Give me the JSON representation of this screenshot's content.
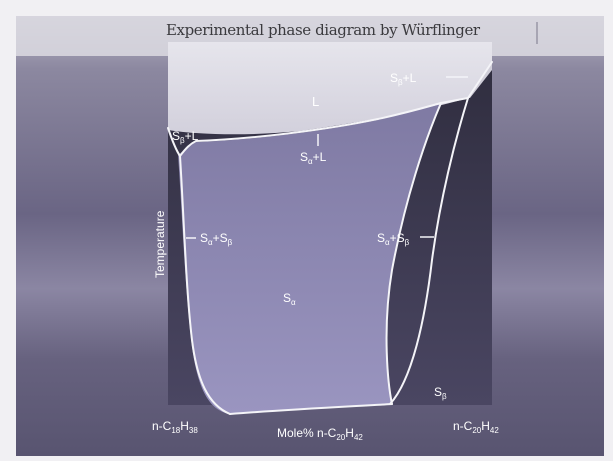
{
  "diagram": {
    "title": "Experimental phase diagram by Würflinger",
    "y_axis_label": "Temperature",
    "x_axis_label": {
      "text": "Mole% n-C",
      "sub1": "20",
      "mid": "H",
      "sub2": "42"
    },
    "left_component": {
      "c": "n-C",
      "c_sub": "18",
      "h": "H",
      "h_sub": "38"
    },
    "right_component": {
      "c": "n-C",
      "c_sub": "20",
      "h": "H",
      "h_sub": "42"
    },
    "region_labels": {
      "liquid": "L",
      "s_beta_l_left": {
        "s": "S",
        "sub": "β",
        "rest": "+L"
      },
      "s_beta_l_right": {
        "s": "S",
        "sub": "β",
        "rest": "+L"
      },
      "s_alpha_l": {
        "s": "S",
        "sub": "α",
        "rest": "+L"
      },
      "s_alpha_s_beta_left": {
        "s": "S",
        "sub1": "α",
        "plus": "+S",
        "sub2": "β"
      },
      "s_alpha_s_beta_right": {
        "s": "S",
        "sub1": "α",
        "plus": "+S",
        "sub2": "β"
      },
      "s_alpha": {
        "s": "S",
        "sub": "α"
      },
      "s_beta": {
        "s": "S",
        "sub": "β"
      }
    },
    "colors": {
      "page_background": "#f1f0f3",
      "liquid_region": "#dcdbe4",
      "s_alpha_region": "#8c86b0",
      "s_beta_region": "#413e55",
      "outer_background": "#5e5a76",
      "phase_boundary": "#ffffff"
    }
  }
}
